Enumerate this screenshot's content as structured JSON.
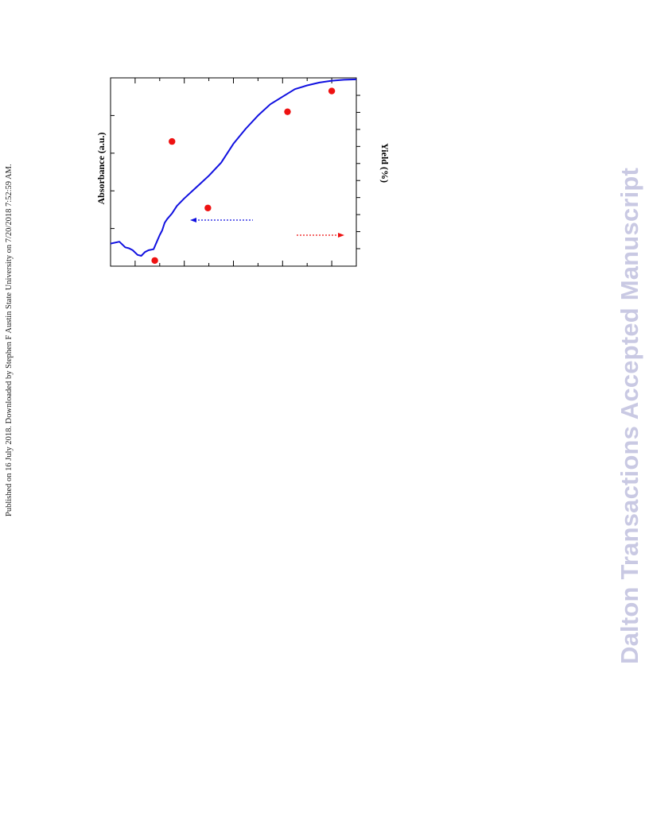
{
  "header": {
    "published_note": "Published on 16 July 2018. Downloaded by Stephen F Austin State University on 7/20/2018 7:52:59 AM."
  },
  "watermark": {
    "text": "Dalton Transactions Accepted Manuscript",
    "color": "#c9c9e3"
  },
  "chart_data": {
    "type": "line",
    "orientation": "rotated 90deg clockwise; x axis runs top-to-bottom",
    "x_ticks_unlabeled": 11,
    "left_axis": {
      "label": "Absorbance (a.u.)",
      "ylim": [
        0,
        1
      ],
      "ticks_unlabeled": 6
    },
    "right_axis": {
      "label": "Yield (%)",
      "ylim": [
        0,
        1
      ],
      "ticks_unlabeled": 10
    },
    "xlim": [
      0,
      1
    ],
    "series": [
      {
        "axis": "left",
        "color": "#1010e0",
        "style": "line",
        "x": [
          0.0,
          0.036,
          0.06,
          0.075,
          0.09,
          0.11,
          0.125,
          0.14,
          0.155,
          0.175,
          0.2,
          0.21,
          0.22,
          0.23,
          0.25,
          0.27,
          0.3,
          0.35,
          0.4,
          0.45,
          0.5,
          0.55,
          0.6,
          0.65,
          0.7,
          0.75,
          0.8,
          0.85,
          0.9,
          0.95,
          1.0
        ],
        "y": [
          0.88,
          0.87,
          0.9,
          0.905,
          0.915,
          0.94,
          0.945,
          0.925,
          0.915,
          0.91,
          0.835,
          0.81,
          0.77,
          0.75,
          0.72,
          0.68,
          0.64,
          0.58,
          0.52,
          0.45,
          0.35,
          0.27,
          0.2,
          0.14,
          0.1,
          0.06,
          0.04,
          0.025,
          0.015,
          0.01,
          0.008
        ]
      },
      {
        "axis": "right",
        "color": "#ee1111",
        "style": "points",
        "x": [
          0.18,
          0.25,
          0.396,
          0.72,
          0.9
        ],
        "y": [
          0.03,
          0.662,
          0.309,
          0.82,
          0.93
        ]
      }
    ],
    "annotations": [
      {
        "type": "arrow",
        "color": "#1010e0",
        "style": "dashed",
        "points_to": "left axis",
        "at_x": 0.575
      },
      {
        "type": "arrow",
        "color": "#ee1111",
        "style": "dashed",
        "points_to": "right axis",
        "at_x": 0.72
      }
    ]
  }
}
